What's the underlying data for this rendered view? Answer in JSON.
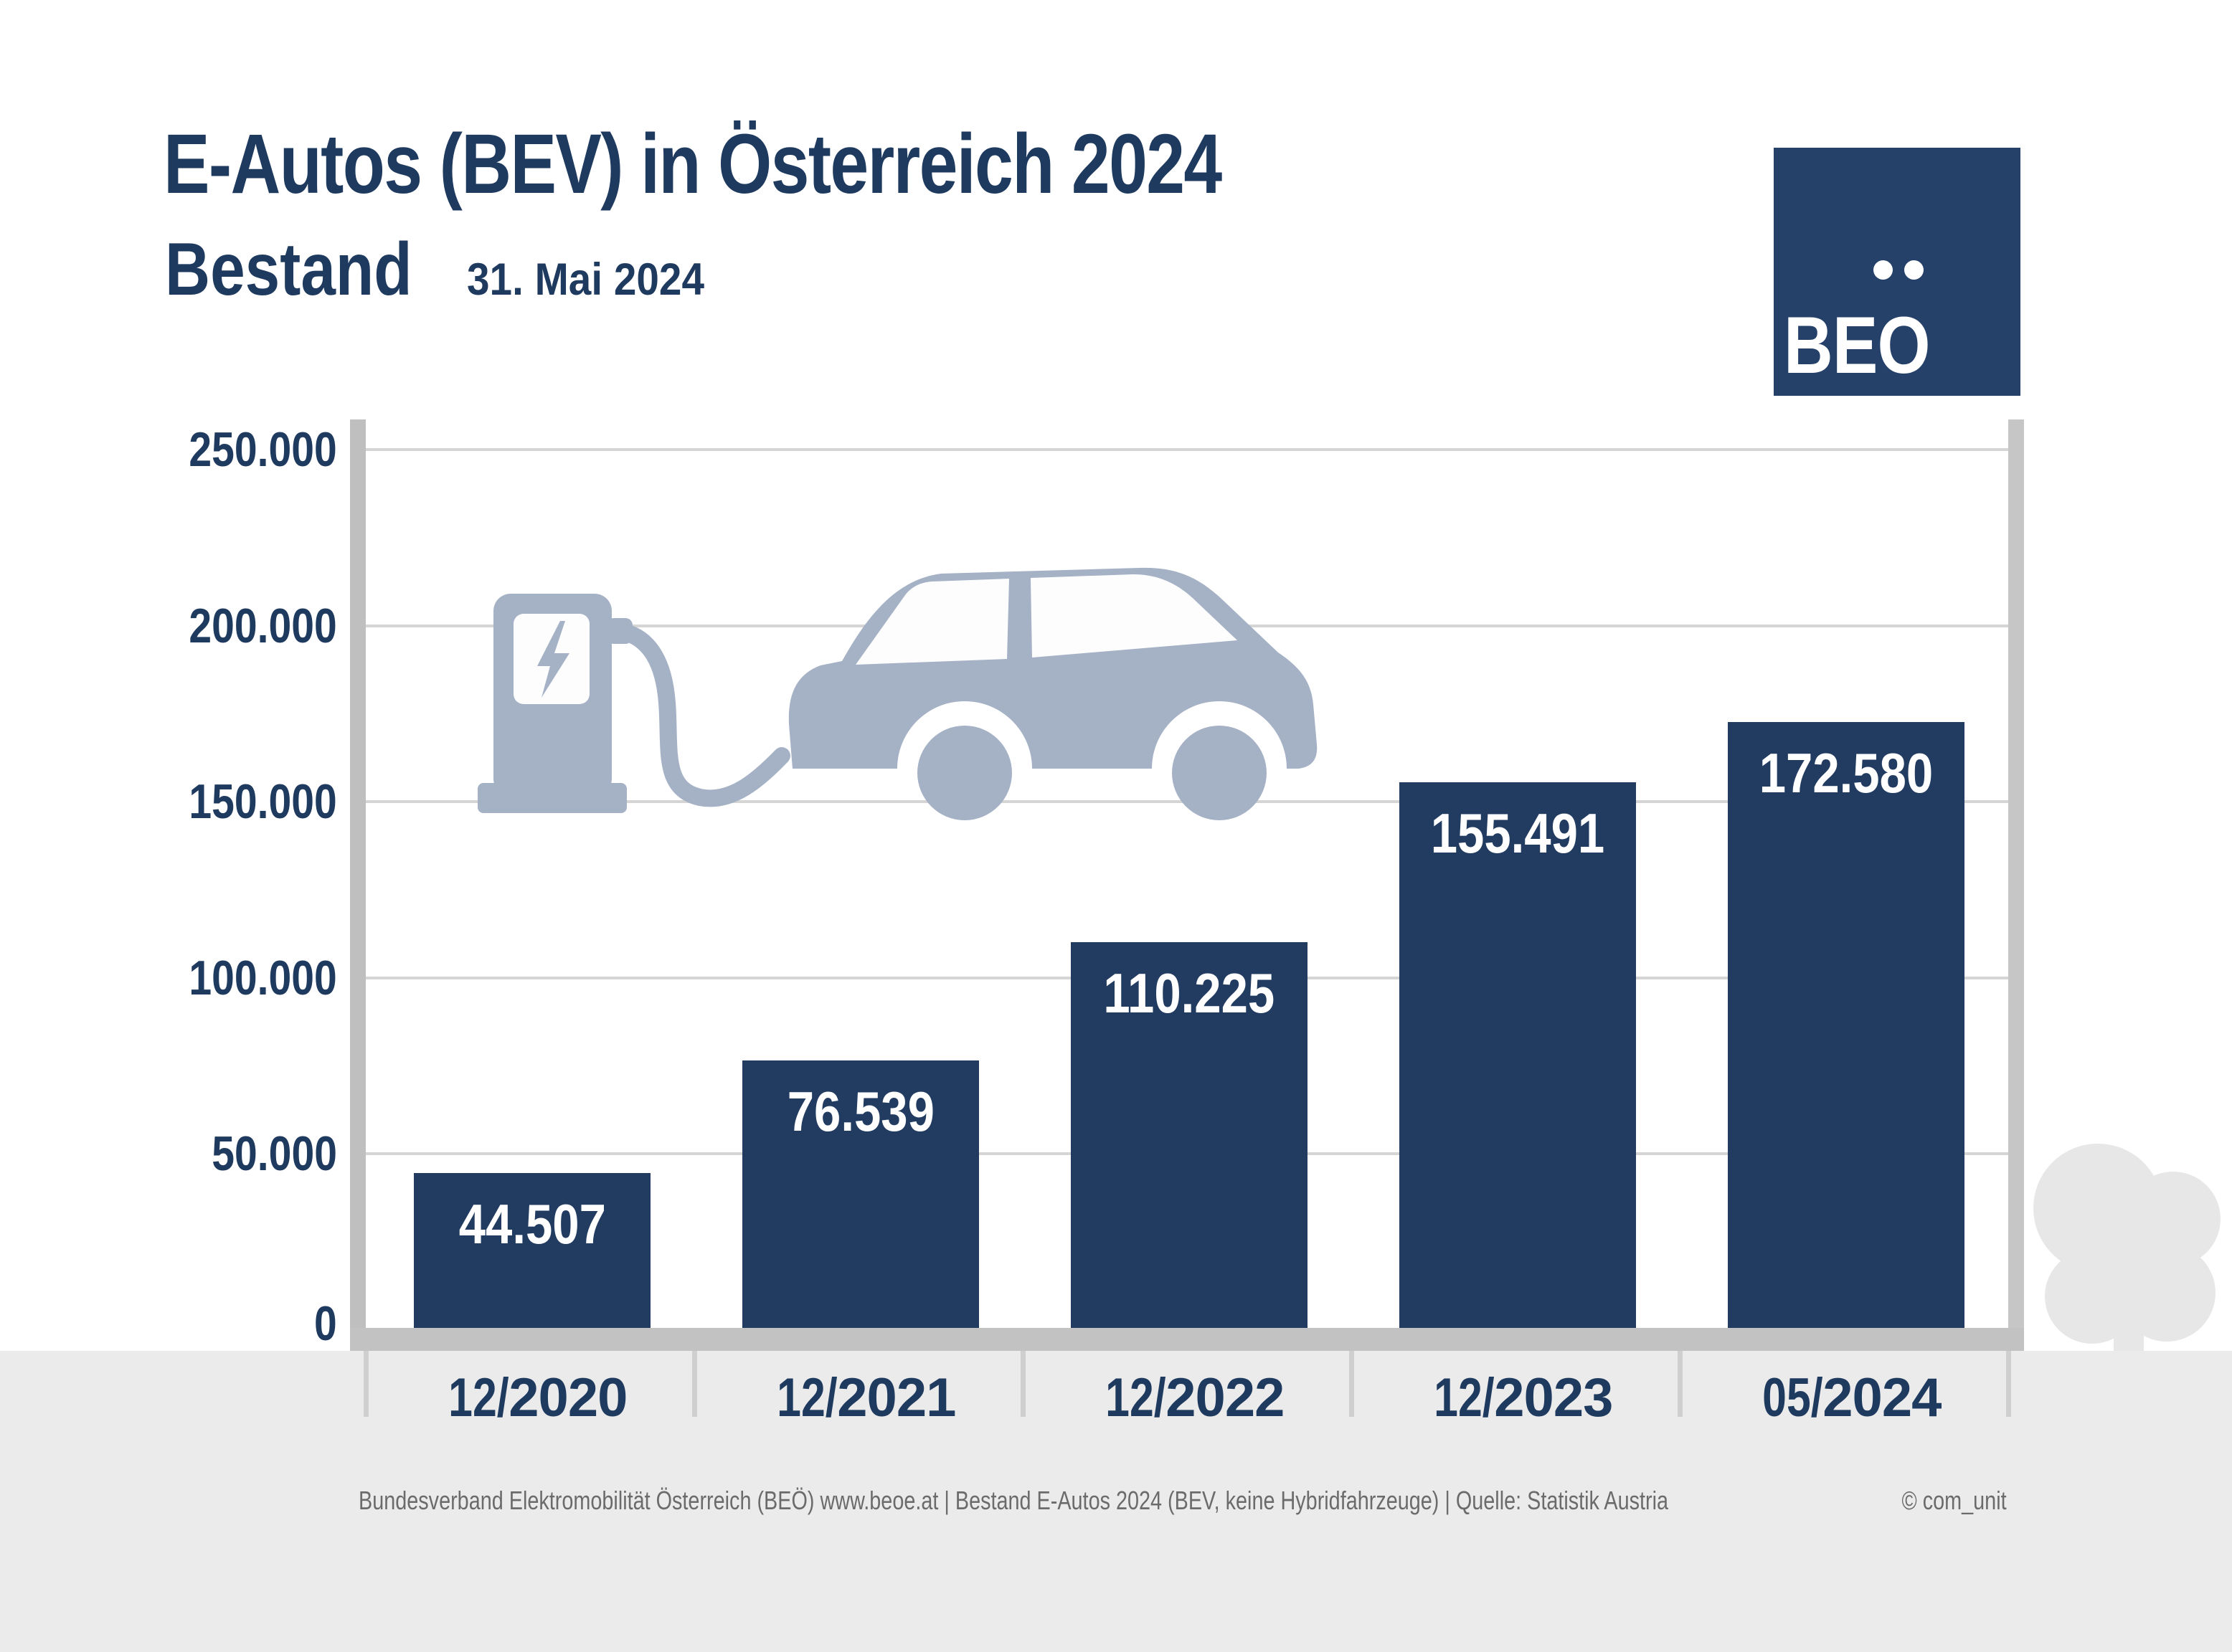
{
  "header": {
    "title": "E-Autos (BEV) in Österreich 2024",
    "subtitle": "Bestand",
    "subtitle_date": "31. Mai 2024"
  },
  "logo": {
    "text": "BEO"
  },
  "chart_data": {
    "type": "bar",
    "title": "E-Autos (BEV) in Österreich 2024 – Bestand 31. Mai 2024",
    "categories": [
      "12/2020",
      "12/2021",
      "12/2022",
      "12/2023",
      "05/2024"
    ],
    "values": [
      44507,
      76539,
      110225,
      155491,
      172580
    ],
    "value_labels": [
      "44.507",
      "76.539",
      "110.225",
      "155.491",
      "172.580"
    ],
    "y_ticks": [
      {
        "value": 0,
        "label": "0"
      },
      {
        "value": 50000,
        "label": "50.000"
      },
      {
        "value": 100000,
        "label": "100.000"
      },
      {
        "value": 150000,
        "label": "150.000"
      },
      {
        "value": 200000,
        "label": "200.000"
      },
      {
        "value": 250000,
        "label": "250.000"
      }
    ],
    "xlabel": "",
    "ylabel": "",
    "ylim": [
      0,
      250000
    ],
    "grid": true,
    "legend": false,
    "bar_color": "#223B60",
    "value_label_color": "#FFFFFF"
  },
  "footer": {
    "credit": "Bundesverband Elektromobilität Österreich (BEÖ) www.beoe.at | Bestand E-Autos 2024 (BEV, keine Hybridfahrzeuge) | Quelle: Statistik Austria",
    "copyright": "© com_unit"
  },
  "colors": {
    "navy": "#1F3A5F",
    "logo_navy": "#264169",
    "graphic_blue": "#A5B2C6",
    "grid": "#D5D5D5",
    "axis": "#C2C2C2",
    "band": "#EBEBEB",
    "tree": "#E7E7E7",
    "footer_text": "#6B6B6B"
  }
}
